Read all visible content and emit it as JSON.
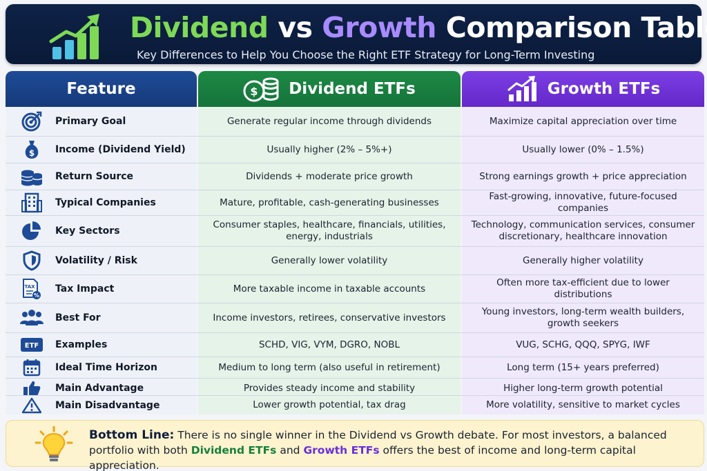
{
  "header": {
    "title_part1": "Dividend",
    "title_part2": " vs ",
    "title_part3": "Growth",
    "title_part4": " Comparison Table",
    "subtitle": "Key Differences to Help You Choose the Right ETF Strategy for Long-Term Investing",
    "icon": "growth-bar-chart-icon"
  },
  "columns": {
    "feature": "Feature",
    "dividend": "Dividend ETFs",
    "growth": "Growth ETFs",
    "dividend_icon": "coin-stack-icon",
    "growth_icon": "rising-chart-icon"
  },
  "colors": {
    "navy": "#0e2247",
    "dividend_green": "#1d8a45",
    "growth_purple": "#7c3fe4",
    "feature_blue": "#1e4b97"
  },
  "rows": [
    {
      "feature": "Primary Goal",
      "icon": "target-icon",
      "dividend": "Generate regular income through dividends",
      "growth": "Maximize capital appreciation over time"
    },
    {
      "feature": "Income (Dividend Yield)",
      "icon": "money-bag-icon",
      "dividend": "Usually higher (2% – 5%+)",
      "growth": "Usually lower (0% – 1.5%)"
    },
    {
      "feature": "Return Source",
      "icon": "coins-icon",
      "dividend": "Dividends + moderate price growth",
      "growth": "Strong earnings growth + price appreciation"
    },
    {
      "feature": "Typical Companies",
      "icon": "building-icon",
      "dividend": "Mature, profitable, cash-generating businesses",
      "growth": "Fast-growing, innovative, future-focused companies"
    },
    {
      "feature": "Key Sectors",
      "icon": "pie-chart-icon",
      "dividend": "Consumer staples, healthcare, financials, utilities, energy, industrials",
      "growth": "Technology, communication services, consumer discretionary, healthcare innovation"
    },
    {
      "feature": "Volatility / Risk",
      "icon": "shield-icon",
      "dividend": "Generally lower volatility",
      "growth": "Generally higher volatility"
    },
    {
      "feature": "Tax Impact",
      "icon": "tax-document-icon",
      "dividend": "More taxable income in taxable accounts",
      "growth": "Often more tax-efficient due to lower distributions"
    },
    {
      "feature": "Best For",
      "icon": "people-icon",
      "dividend": "Income investors, retirees, conservative investors",
      "growth": "Young investors, long-term wealth builders, growth seekers"
    },
    {
      "feature": "Examples",
      "icon": "etf-badge-icon",
      "icon_text": "ETF",
      "dividend": "SCHD, VIG, VYM, DGRO, NOBL",
      "growth": "VUG, SCHG, QQQ, SPYG, IWF"
    },
    {
      "feature": "Ideal Time Horizon",
      "icon": "calendar-icon",
      "dividend": "Medium to long term (also useful in retirement)",
      "growth": "Long term (15+ years preferred)"
    },
    {
      "feature": "Main Advantage",
      "icon": "thumbs-up-icon",
      "dividend": "Provides steady income and stability",
      "growth": "Higher long-term growth potential"
    },
    {
      "feature": "Main Disadvantage",
      "icon": "warning-icon",
      "dividend": "Lower growth potential, tax drag",
      "growth": "More volatility, sensitive to market cycles"
    }
  ],
  "bottom_line": {
    "label": "Bottom Line:",
    "text_a": " There is no single winner in the Dividend vs Growth debate. For most investors, a balanced portfolio with both ",
    "highlight_dividend": "Dividend ETFs",
    "text_b": " and ",
    "highlight_growth": "Growth ETFs",
    "text_c": " offers the best of income and long-term capital appreciation.",
    "icon": "lightbulb-icon"
  }
}
